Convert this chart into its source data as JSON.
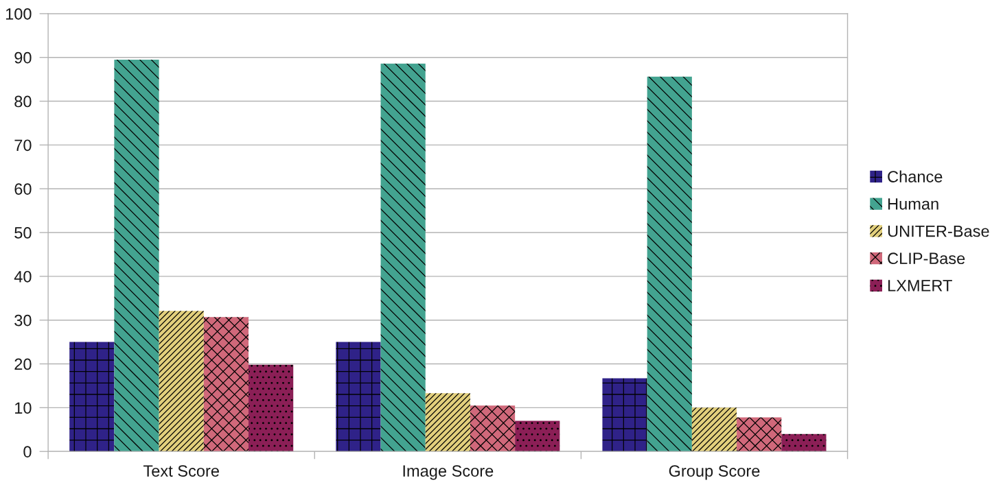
{
  "chart_data": {
    "type": "bar",
    "categories": [
      "Text Score",
      "Image Score",
      "Group Score"
    ],
    "series": [
      {
        "name": "Chance",
        "color": "#2f2288",
        "values": [
          25,
          25,
          16.7
        ]
      },
      {
        "name": "Human",
        "color": "#43a390",
        "values": [
          89.5,
          88.6,
          85.6
        ]
      },
      {
        "name": "UNITER-Base",
        "color": "#e2cf7c",
        "values": [
          32.1,
          13.3,
          10.0
        ]
      },
      {
        "name": "CLIP-Base",
        "color": "#d0687a",
        "values": [
          30.7,
          10.5,
          7.8
        ]
      },
      {
        "name": "LXMERT",
        "color": "#8b1f56",
        "values": [
          19.8,
          7.0,
          4.0
        ]
      }
    ],
    "ylim": [
      0,
      100
    ],
    "yticks": [
      0,
      10,
      20,
      30,
      40,
      50,
      60,
      70,
      80,
      90,
      100
    ],
    "grid": "y",
    "legend": "right"
  }
}
